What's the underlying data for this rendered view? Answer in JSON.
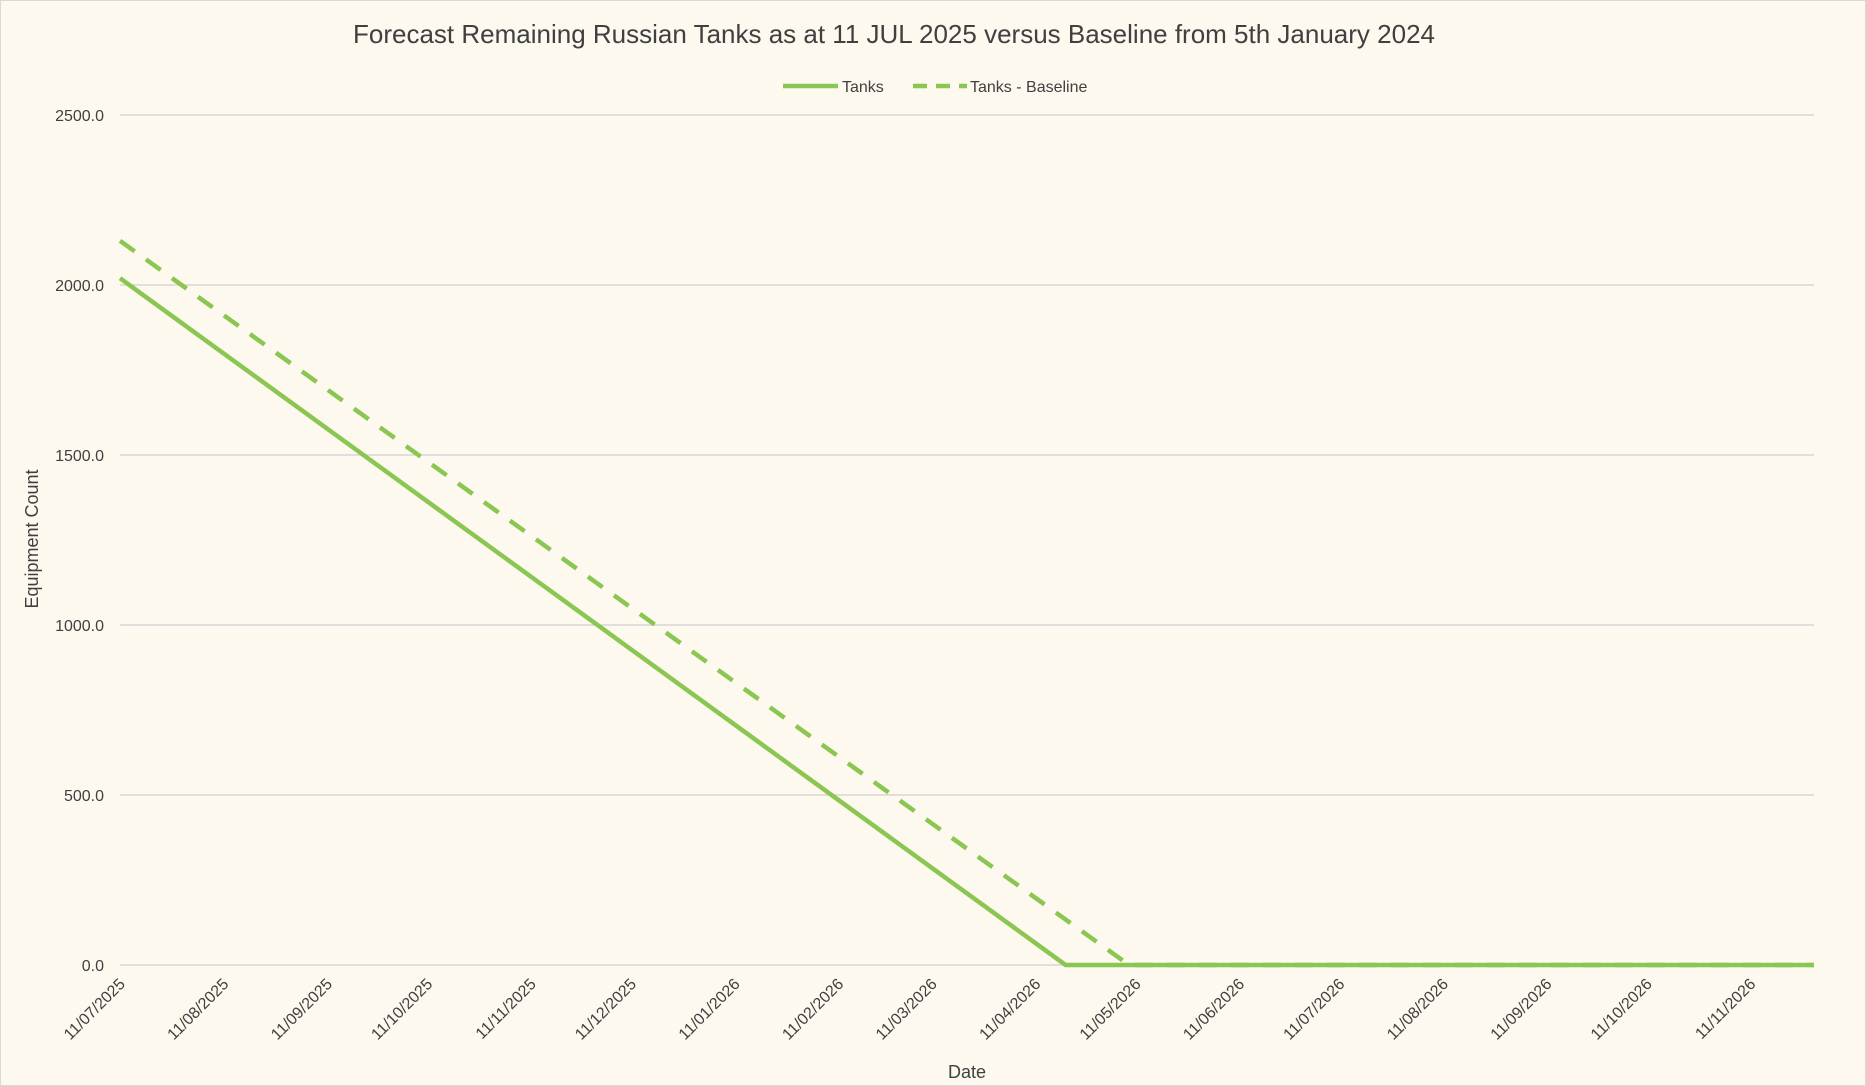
{
  "colors": {
    "background": "#fdf9ee",
    "series": "#8bc653",
    "grid": "#d0d0d0",
    "text": "#404040"
  },
  "chart_data": {
    "type": "line",
    "title": "Forecast Remaining Russian Tanks as at 11 JUL 2025 versus Baseline from 5th January 2024",
    "xlabel": "Date",
    "ylabel": "Equipment Count",
    "ylim": [
      0,
      2500
    ],
    "yticks": [
      "0.0",
      "500.0",
      "1000.0",
      "1500.0",
      "2000.0",
      "2500.0"
    ],
    "xticks": [
      "11/07/2025",
      "11/08/2025",
      "11/09/2025",
      "11/10/2025",
      "11/11/2025",
      "11/12/2025",
      "11/01/2026",
      "11/02/2026",
      "11/03/2026",
      "11/04/2026",
      "11/05/2026",
      "11/06/2026",
      "11/07/2026",
      "11/08/2026",
      "11/09/2026",
      "11/10/2026",
      "11/11/2026"
    ],
    "xlim": [
      "2025-07-11",
      "2026-11-30"
    ],
    "grid": true,
    "legend": "top-center",
    "series": [
      {
        "name": "Tanks",
        "style": "solid",
        "points": [
          {
            "x": "2025-07-11",
            "y": 2020
          },
          {
            "x": "2026-04-20",
            "y": 0
          },
          {
            "x": "2026-11-30",
            "y": 0
          }
        ]
      },
      {
        "name": "Tanks - Baseline",
        "style": "dashed",
        "points": [
          {
            "x": "2025-07-11",
            "y": 2130
          },
          {
            "x": "2026-05-09",
            "y": 0
          },
          {
            "x": "2026-11-30",
            "y": 0
          }
        ]
      }
    ]
  }
}
